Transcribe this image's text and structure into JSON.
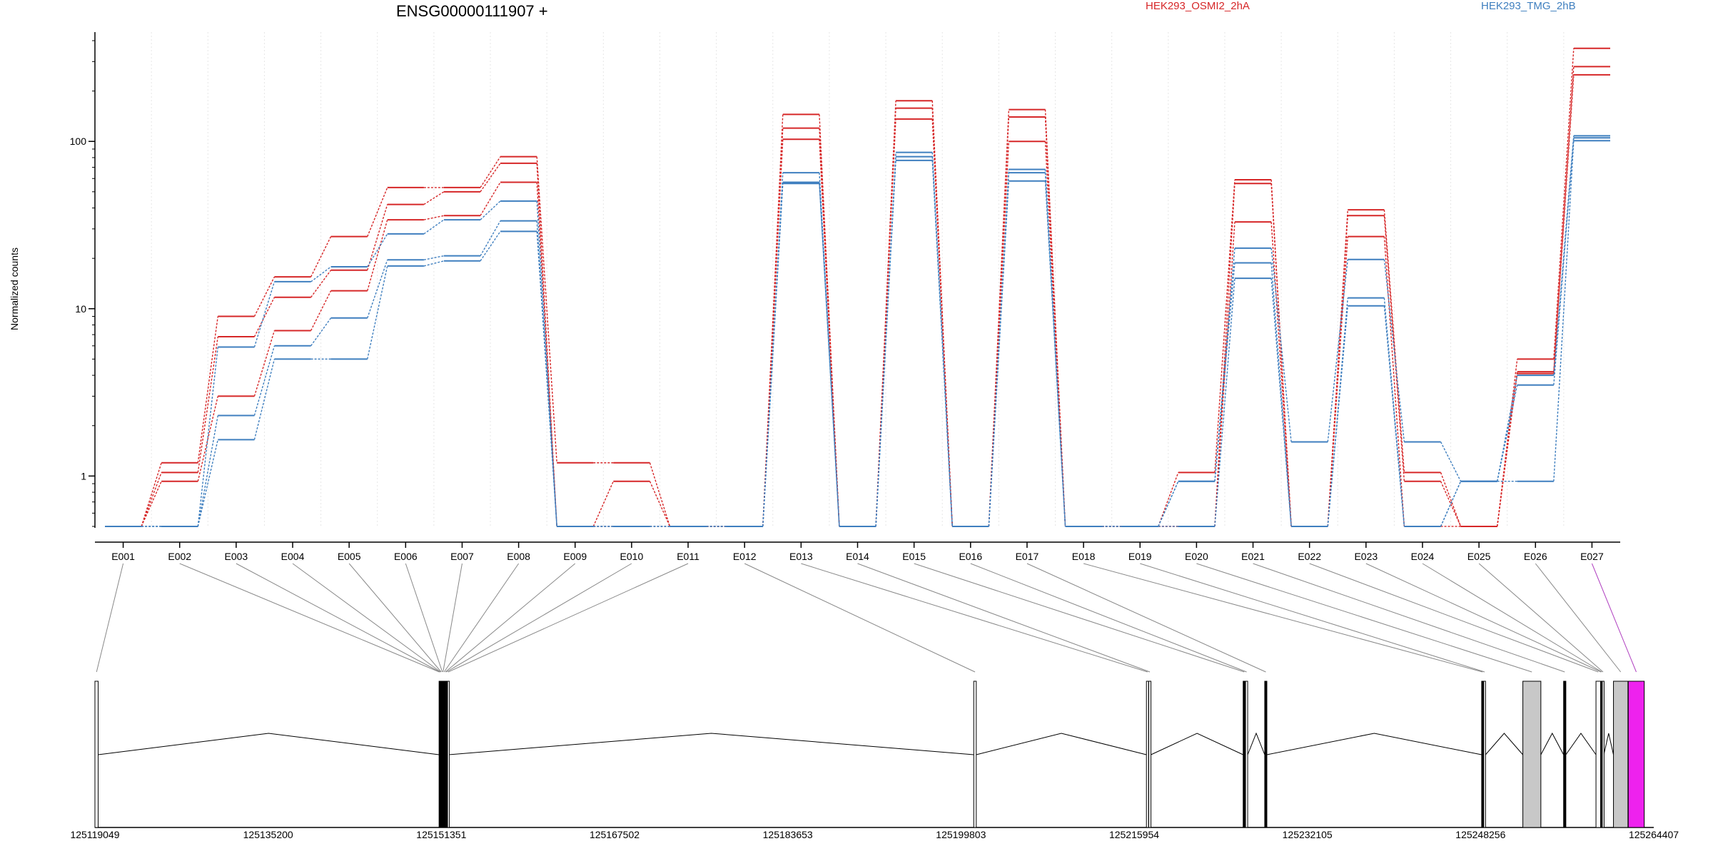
{
  "chart_data": {
    "type": "line",
    "title": "ENSG00000111907 +",
    "ylabel": "Normalized counts",
    "yscale": "log",
    "ylim": [
      0.49,
      450
    ],
    "y_ticks": [
      1,
      10,
      100
    ],
    "y_tick_labels": [
      "1",
      "10",
      "100"
    ],
    "grid": "vertical dotted at exon boundaries",
    "legend": [
      {
        "name": "HEK293_OSMI2_2hA",
        "color": "#d62728"
      },
      {
        "name": "HEK293_TMG_2hB",
        "color": "#3f7fbf"
      }
    ],
    "categories": [
      "E001",
      "E002",
      "E003",
      "E004",
      "E005",
      "E006",
      "E007",
      "E008",
      "E009",
      "E010",
      "E011",
      "E012",
      "E013",
      "E014",
      "E015",
      "E016",
      "E017",
      "E018",
      "E019",
      "E020",
      "E021",
      "E022",
      "E023",
      "E024",
      "E025",
      "E026",
      "E027"
    ],
    "series": [
      {
        "group": "HEK293_OSMI2_2hA",
        "color": "#d62728",
        "values": [
          0.5,
          1.2,
          9.0,
          15.5,
          27,
          53,
          53,
          81,
          1.2,
          1.2,
          0.5,
          0.5,
          145,
          0.5,
          175,
          0.5,
          155,
          0.5,
          0.5,
          1.05,
          59,
          0.5,
          39,
          1.05,
          0.5,
          5.0,
          360
        ]
      },
      {
        "group": "HEK293_OSMI2_2hA",
        "color": "#d62728",
        "values": [
          0.5,
          1.05,
          6.8,
          11.7,
          17,
          42,
          50,
          74,
          0.5,
          0.93,
          0.5,
          0.5,
          120,
          0.5,
          158,
          0.5,
          140,
          0.5,
          0.5,
          0.5,
          56,
          0.5,
          36,
          0.93,
          0.5,
          4.2,
          280
        ]
      },
      {
        "group": "HEK293_OSMI2_2hA",
        "color": "#d62728",
        "values": [
          0.5,
          0.93,
          3.0,
          7.4,
          12.8,
          34,
          36,
          57,
          0.5,
          0.5,
          0.5,
          0.5,
          103,
          0.5,
          136,
          0.5,
          100,
          0.5,
          0.5,
          0.5,
          33,
          0.5,
          27,
          0.5,
          0.5,
          4.1,
          250
        ]
      },
      {
        "group": "HEK293_TMG_2hB",
        "color": "#3f7fbf",
        "values": [
          0.5,
          0.5,
          5.9,
          14.5,
          17.8,
          28,
          34,
          44,
          0.5,
          0.5,
          0.5,
          0.5,
          65,
          0.5,
          86,
          0.5,
          68,
          0.5,
          0.5,
          0.93,
          23,
          1.6,
          19.7,
          1.6,
          0.93,
          4.0,
          108
        ]
      },
      {
        "group": "HEK293_TMG_2hB",
        "color": "#3f7fbf",
        "values": [
          0.5,
          0.5,
          2.3,
          6.0,
          8.8,
          19.6,
          20.7,
          33.5,
          0.5,
          0.5,
          0.5,
          0.5,
          57,
          0.5,
          81,
          0.5,
          65,
          0.5,
          0.5,
          0.93,
          18.8,
          0.5,
          11.6,
          0.5,
          0.93,
          3.5,
          105
        ]
      },
      {
        "group": "HEK293_TMG_2hB",
        "color": "#3f7fbf",
        "values": [
          0.5,
          0.5,
          1.65,
          5.0,
          5.0,
          18.0,
          19.3,
          29,
          0.5,
          0.5,
          0.5,
          0.5,
          56,
          0.5,
          77,
          0.5,
          58,
          0.5,
          0.5,
          0.5,
          15.2,
          0.5,
          10.4,
          0.5,
          0.93,
          0.93,
          101
        ]
      }
    ],
    "gene_model": {
      "coordinate_labels": [
        "125119049",
        "125135200",
        "125151351",
        "125167502",
        "125183653",
        "125199803",
        "125215954",
        "125232105",
        "125248256",
        "125264407"
      ],
      "range": [
        125119049,
        125264407
      ],
      "exons": [
        {
          "id": "E001",
          "start": 125119049,
          "end": 125119350,
          "fill": "#ffffff"
        },
        {
          "id": "E002",
          "start": 125151140,
          "end": 125151180,
          "fill": "#000000"
        },
        {
          "id": "E003",
          "start": 125151200,
          "end": 125151240,
          "fill": "#000000"
        },
        {
          "id": "E004",
          "start": 125151260,
          "end": 125151300,
          "fill": "#000000"
        },
        {
          "id": "E005",
          "start": 125151320,
          "end": 125151360,
          "fill": "#000000"
        },
        {
          "id": "E006",
          "start": 125151420,
          "end": 125151470,
          "fill": "#000000"
        },
        {
          "id": "E007",
          "start": 125151490,
          "end": 125151530,
          "fill": "#000000"
        },
        {
          "id": "E008",
          "start": 125151580,
          "end": 125151640,
          "fill": "#000000"
        },
        {
          "id": "E009",
          "start": 125151700,
          "end": 125151760,
          "fill": "#000000"
        },
        {
          "id": "E010",
          "start": 125151790,
          "end": 125151850,
          "fill": "#000000"
        },
        {
          "id": "E011",
          "start": 125151930,
          "end": 125152050,
          "fill": "#ffffff"
        },
        {
          "id": "E012",
          "start": 125201000,
          "end": 125201230,
          "fill": "#ffffff"
        },
        {
          "id": "E013",
          "start": 125217100,
          "end": 125217300,
          "fill": "#ffffff"
        },
        {
          "id": "E014",
          "start": 125217320,
          "end": 125217520,
          "fill": "#ffffff"
        },
        {
          "id": "E015",
          "start": 125226120,
          "end": 125226320,
          "fill": "#000000"
        },
        {
          "id": "E016",
          "start": 125226340,
          "end": 125226540,
          "fill": "#ffffff"
        },
        {
          "id": "E017",
          "start": 125228130,
          "end": 125228330,
          "fill": "#000000"
        },
        {
          "id": "E018",
          "start": 125248360,
          "end": 125248530,
          "fill": "#000000"
        },
        {
          "id": "E019",
          "start": 125248550,
          "end": 125248720,
          "fill": "#ffffff"
        },
        {
          "id": "E020",
          "start": 125252200,
          "end": 125253880,
          "fill": "#c8c8c8"
        },
        {
          "id": "E021",
          "start": 125256000,
          "end": 125256210,
          "fill": "#000000"
        },
        {
          "id": "E022",
          "start": 125259020,
          "end": 125259450,
          "fill": "#ffffff"
        },
        {
          "id": "E023",
          "start": 125259470,
          "end": 125259520,
          "fill": "#ffffff"
        },
        {
          "id": "E024",
          "start": 125259540,
          "end": 125259590,
          "fill": "#ffffff"
        },
        {
          "id": "E025",
          "start": 125259610,
          "end": 125259750,
          "fill": "#ffffff"
        },
        {
          "id": "E026",
          "start": 125260650,
          "end": 125262000,
          "fill": "#c8c8c8"
        },
        {
          "id": "E027",
          "start": 125262030,
          "end": 125263520,
          "fill": "#ee22ee"
        }
      ],
      "introns": [
        [
          125119350,
          125151140
        ],
        [
          125152050,
          125201000
        ],
        [
          125201230,
          125217100
        ],
        [
          125217520,
          125226120
        ],
        [
          125226540,
          125228130
        ],
        [
          125228330,
          125248360
        ],
        [
          125248720,
          125252200
        ],
        [
          125253880,
          125256000
        ],
        [
          125256210,
          125259020
        ],
        [
          125259750,
          125260650
        ]
      ]
    }
  }
}
